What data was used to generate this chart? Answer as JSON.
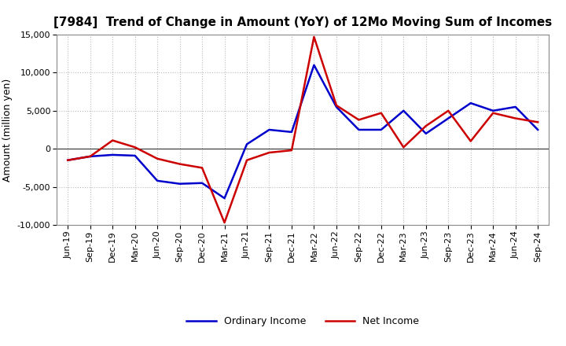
{
  "title": "[7984]  Trend of Change in Amount (YoY) of 12Mo Moving Sum of Incomes",
  "ylabel": "Amount (million yen)",
  "background_color": "#ffffff",
  "grid_color": "#bbbbbb",
  "x_labels": [
    "Jun-19",
    "Sep-19",
    "Dec-19",
    "Mar-20",
    "Jun-20",
    "Sep-20",
    "Dec-20",
    "Mar-21",
    "Jun-21",
    "Sep-21",
    "Dec-21",
    "Mar-22",
    "Jun-22",
    "Sep-22",
    "Dec-22",
    "Mar-23",
    "Jun-23",
    "Sep-23",
    "Dec-23",
    "Mar-24",
    "Jun-24",
    "Sep-24"
  ],
  "ordinary_income": [
    -1500,
    -1000,
    -800,
    -900,
    -4200,
    -4600,
    -4500,
    -6500,
    600,
    2500,
    2200,
    11000,
    5500,
    2500,
    2500,
    5000,
    2000,
    4000,
    6000,
    5000,
    5500,
    2500
  ],
  "net_income": [
    -1500,
    -1000,
    1100,
    200,
    -1300,
    -2000,
    -2500,
    -9700,
    -1500,
    -500,
    -200,
    14700,
    5700,
    3800,
    4700,
    200,
    3000,
    5000,
    1000,
    4700,
    4000,
    3500
  ],
  "ordinary_color": "#0000cc",
  "net_color": "#cc0000",
  "ylim": [
    -10000,
    15000
  ],
  "yticks": [
    -10000,
    -5000,
    0,
    5000,
    10000,
    15000
  ],
  "line_width": 1.8,
  "title_fontsize": 11,
  "axis_fontsize": 8,
  "ylabel_fontsize": 9,
  "legend_fontsize": 9
}
